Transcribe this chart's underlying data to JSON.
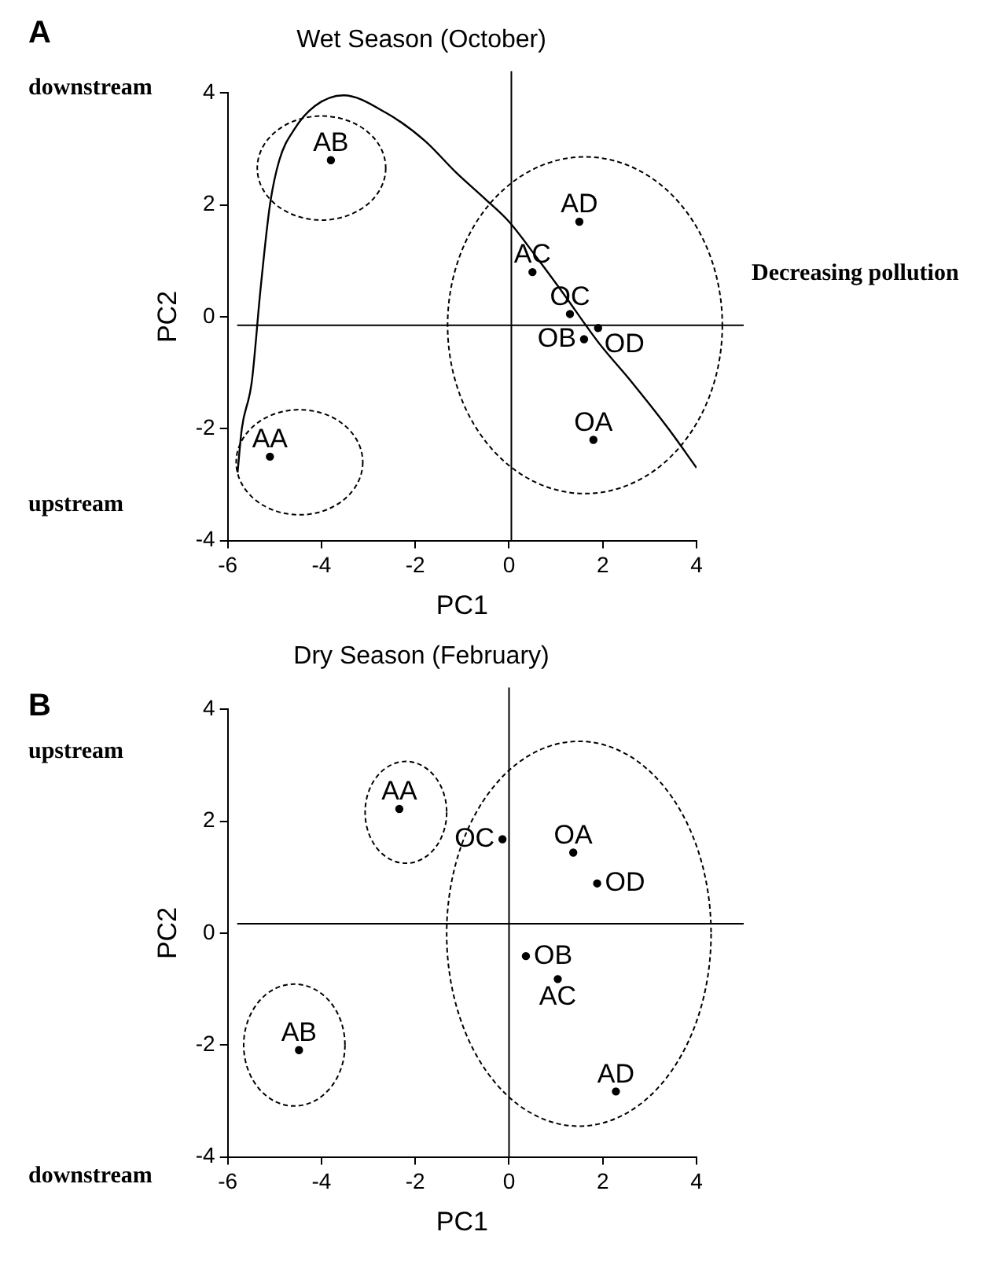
{
  "chart_data": [
    {
      "type": "scatter",
      "title": "Wet Season (October)",
      "xlabel": "PC1",
      "ylabel": "PC2",
      "xlim": [
        -6,
        4
      ],
      "ylim": [
        -4,
        4
      ],
      "xticks": [
        -6,
        -4,
        -2,
        0,
        2,
        4
      ],
      "yticks": [
        -4,
        -2,
        0,
        2,
        4
      ],
      "marker": "circle",
      "annotations": [
        "A",
        "downstream",
        "upstream",
        "Decreasing pollution"
      ],
      "ref_lines": [
        {
          "axis": "y",
          "value": -0.15
        },
        {
          "axis": "x",
          "value": 0.05
        }
      ],
      "series": [
        {
          "name": "AB",
          "x": [
            -3.8
          ],
          "values": [
            2.8
          ],
          "color": "#000000"
        },
        {
          "name": "AD",
          "x": [
            1.5
          ],
          "values": [
            1.7
          ],
          "color": "#000000"
        },
        {
          "name": "AC",
          "x": [
            0.5
          ],
          "values": [
            0.8
          ],
          "color": "#000000"
        },
        {
          "name": "OC",
          "x": [
            1.3
          ],
          "values": [
            0.05
          ],
          "color": "#000000"
        },
        {
          "name": "OD",
          "x": [
            1.9
          ],
          "values": [
            -0.2
          ],
          "color": "#000000"
        },
        {
          "name": "OB",
          "x": [
            1.6
          ],
          "values": [
            -0.4
          ],
          "color": "#000000"
        },
        {
          "name": "OA",
          "x": [
            1.8
          ],
          "values": [
            -2.2
          ],
          "color": "#000000"
        },
        {
          "name": "AA",
          "x": [
            -5.1
          ],
          "values": [
            -2.5
          ],
          "color": "#000000"
        },
        {
          "type": "line",
          "marker": "none",
          "x": [
            -5.79,
            -5.7,
            -5.49,
            -5.3,
            -5.1,
            -4.9,
            -4.59,
            -4.14,
            -3.53,
            -2.63,
            -1.8,
            -1.13,
            -0.5,
            0,
            0.6,
            1.13,
            1.9,
            2.63,
            3.4,
            4.0
          ],
          "values": [
            -2.78,
            -2.0,
            -1.18,
            0.5,
            2.0,
            2.8,
            3.34,
            3.77,
            3.96,
            3.65,
            3.15,
            2.58,
            2.1,
            1.7,
            1.05,
            0.45,
            -0.45,
            -1.18,
            -2.0,
            -2.7
          ],
          "color": "#000000"
        }
      ]
    },
    {
      "type": "scatter",
      "title": "Dry Season (February)",
      "xlabel": "PC1",
      "ylabel": "PC2",
      "xlim": [
        -6,
        4
      ],
      "ylim": [
        -4,
        4
      ],
      "xticks": [
        -6,
        -4,
        -2,
        0,
        2,
        4
      ],
      "yticks": [
        -4,
        -2,
        0,
        2,
        4
      ],
      "marker": "circle",
      "annotations": [
        "B",
        "upstream",
        "downstream"
      ],
      "ref_lines": [
        {
          "axis": "y",
          "value": 0.17
        },
        {
          "axis": "x",
          "value": 0
        }
      ],
      "series": [
        {
          "name": "AA",
          "x": [
            -2.34
          ],
          "values": [
            2.22
          ],
          "color": "#000000"
        },
        {
          "name": "OC",
          "x": [
            -0.14
          ],
          "values": [
            1.68
          ],
          "color": "#000000"
        },
        {
          "name": "OA",
          "x": [
            1.37
          ],
          "values": [
            1.44
          ],
          "color": "#000000"
        },
        {
          "name": "OD",
          "x": [
            1.88
          ],
          "values": [
            0.89
          ],
          "color": "#000000"
        },
        {
          "name": "OB",
          "x": [
            0.36
          ],
          "values": [
            -0.41
          ],
          "color": "#000000"
        },
        {
          "name": "AC",
          "x": [
            1.04
          ],
          "values": [
            -0.82
          ],
          "color": "#000000"
        },
        {
          "name": "AB",
          "x": [
            -4.48
          ],
          "values": [
            -2.09
          ],
          "color": "#000000"
        },
        {
          "name": "AD",
          "x": [
            2.28
          ],
          "values": [
            -2.83
          ],
          "color": "#000000"
        }
      ]
    }
  ]
}
